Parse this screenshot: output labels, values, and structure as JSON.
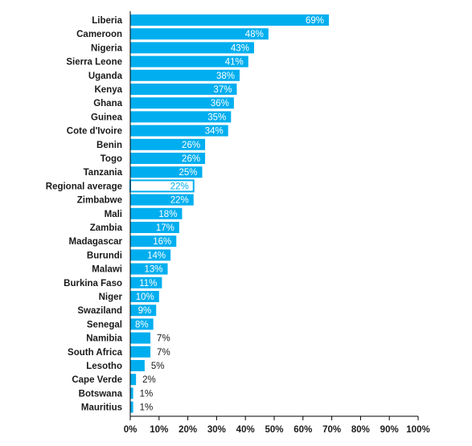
{
  "colors": {
    "bar": "#00aeef",
    "highlight_fill": "#ffffff",
    "inside_label": "#ffffff",
    "outside_label": "#1a1a1a",
    "axis": "#000000"
  },
  "chart_data": {
    "type": "bar",
    "orientation": "horizontal",
    "title": "",
    "xlabel": "",
    "ylabel": "",
    "xlim": [
      0,
      100
    ],
    "x_ticks": [
      "0%",
      "10%",
      "20%",
      "30%",
      "40%",
      "50%",
      "60%",
      "70%",
      "80%",
      "90%",
      "100%"
    ],
    "grid": false,
    "legend": "none",
    "categories": [
      "Liberia",
      "Cameroon",
      "Nigeria",
      "Sierra Leone",
      "Uganda",
      "Kenya",
      "Ghana",
      "Guinea",
      "Cote d'Ivoire",
      "Benin",
      "Togo",
      "Tanzania",
      "Regional average",
      "Zimbabwe",
      "Mali",
      "Zambia",
      "Madagascar",
      "Burundi",
      "Malawi",
      "Burkina Faso",
      "Niger",
      "Swaziland",
      "Senegal",
      "Namibia",
      "South Africa",
      "Lesotho",
      "Cape Verde",
      "Botswana",
      "Mauritius"
    ],
    "values": [
      69,
      48,
      43,
      41,
      38,
      37,
      36,
      35,
      34,
      26,
      26,
      25,
      22,
      22,
      18,
      17,
      16,
      14,
      13,
      11,
      10,
      9,
      8,
      7,
      7,
      5,
      2,
      1,
      1
    ],
    "value_labels": [
      "69%",
      "48%",
      "43%",
      "41%",
      "38%",
      "37%",
      "36%",
      "35%",
      "34%",
      "26%",
      "26%",
      "25%",
      "22%",
      "22%",
      "18%",
      "17%",
      "16%",
      "14%",
      "13%",
      "11%",
      "10%",
      "9%",
      "8%",
      "7%",
      "7%",
      "5%",
      "2%",
      "1%",
      "1%"
    ],
    "highlighted_category": "Regional average"
  }
}
